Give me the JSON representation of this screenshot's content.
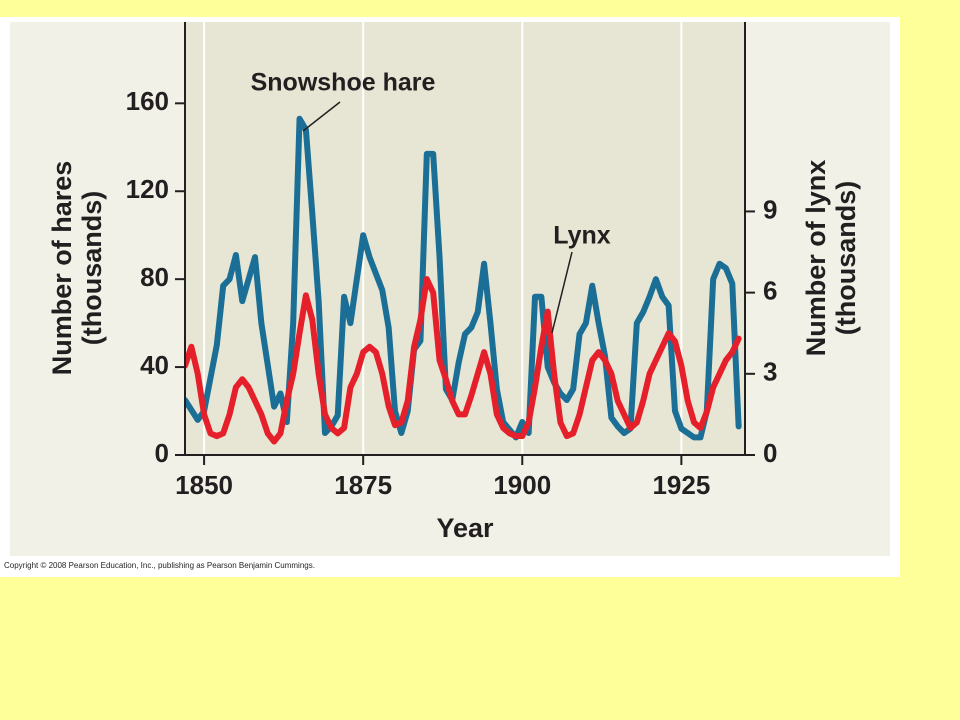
{
  "chart_data": {
    "type": "line",
    "xlabel": "Year",
    "ylabel": [
      "Number of hares",
      "(thousands)"
    ],
    "y2label": [
      "Number of lynx",
      "(thousands)"
    ],
    "annotations": [
      "Snowshoe hare",
      "Lynx"
    ],
    "footer": "Copyright © 2008 Pearson Education, Inc., publishing as Pearson Benjamin Cummings.",
    "xlim": [
      1847,
      1935
    ],
    "xticks": [
      1850,
      1875,
      1900,
      1925
    ],
    "ylim": [
      0,
      197
    ],
    "yticks": [
      0,
      40,
      80,
      120,
      160
    ],
    "y2lim": [
      0,
      16
    ],
    "y2ticks": [
      0,
      3,
      6,
      9
    ],
    "grid": true,
    "series": [
      {
        "name": "Snowshoe hare",
        "color": "#1b6f96",
        "x": [
          1847,
          1849,
          1850,
          1852,
          1853,
          1854,
          1855,
          1856,
          1857,
          1858,
          1859,
          1861,
          1862,
          1863,
          1864,
          1865,
          1866,
          1867,
          1868,
          1869,
          1870,
          1871,
          1872,
          1873,
          1875,
          1876,
          1878,
          1879,
          1880,
          1881,
          1882,
          1883,
          1884,
          1885,
          1886,
          1887,
          1888,
          1889,
          1890,
          1891,
          1892,
          1893,
          1894,
          1895,
          1896,
          1897,
          1899,
          1900,
          1901,
          1902,
          1903,
          1904,
          1905,
          1906,
          1907,
          1908,
          1909,
          1910,
          1911,
          1912,
          1913,
          1914,
          1915,
          1916,
          1917,
          1918,
          1919,
          1920,
          1921,
          1922,
          1923,
          1924,
          1925,
          1926,
          1927,
          1928,
          1929,
          1930,
          1931,
          1932,
          1933,
          1934
        ],
        "values": [
          25,
          16,
          20,
          50,
          77,
          80,
          91,
          70,
          80,
          90,
          60,
          22,
          28,
          15,
          60,
          153,
          148,
          110,
          70,
          10,
          13,
          18,
          72,
          60,
          100,
          90,
          75,
          58,
          20,
          10,
          20,
          48,
          52,
          137,
          137,
          90,
          30,
          25,
          42,
          55,
          58,
          65,
          87,
          60,
          30,
          15,
          8,
          15,
          10,
          72,
          72,
          40,
          33,
          28,
          25,
          30,
          55,
          60,
          77,
          60,
          45,
          17,
          13,
          10,
          12,
          60,
          65,
          72,
          80,
          72,
          68,
          20,
          12,
          10,
          8,
          8,
          20,
          80,
          87,
          85,
          78,
          13
        ]
      },
      {
        "name": "Lynx",
        "color": "#e5202b",
        "axis": "y2",
        "x": [
          1847,
          1848,
          1849,
          1850,
          1851,
          1852,
          1853,
          1854,
          1855,
          1856,
          1857,
          1858,
          1859,
          1860,
          1861,
          1862,
          1863,
          1864,
          1865,
          1866,
          1867,
          1868,
          1869,
          1870,
          1871,
          1872,
          1873,
          1874,
          1875,
          1876,
          1877,
          1878,
          1879,
          1880,
          1881,
          1882,
          1883,
          1884,
          1885,
          1886,
          1887,
          1888,
          1889,
          1890,
          1891,
          1892,
          1893,
          1894,
          1895,
          1896,
          1897,
          1898,
          1899,
          1900,
          1901,
          1902,
          1903,
          1904,
          1905,
          1906,
          1907,
          1908,
          1909,
          1910,
          1911,
          1912,
          1913,
          1914,
          1915,
          1916,
          1917,
          1918,
          1919,
          1920,
          1921,
          1922,
          1923,
          1924,
          1925,
          1926,
          1927,
          1928,
          1929,
          1930,
          1931,
          1932,
          1933,
          1934
        ],
        "values": [
          3.3,
          4,
          3,
          1.5,
          0.8,
          0.7,
          0.8,
          1.5,
          2.5,
          2.8,
          2.5,
          2,
          1.5,
          0.8,
          0.5,
          0.8,
          2,
          3,
          4.5,
          5.9,
          5,
          3,
          1.5,
          1,
          0.8,
          1,
          2.5,
          3,
          3.8,
          4,
          3.8,
          3,
          1.8,
          1.1,
          1.2,
          2,
          4,
          5,
          6.5,
          6,
          3.5,
          2.8,
          2,
          1.5,
          1.5,
          2.2,
          3,
          3.8,
          3,
          1.5,
          1,
          0.8,
          0.7,
          0.7,
          1.2,
          2.5,
          4,
          5.3,
          3,
          1.2,
          0.7,
          0.8,
          1.5,
          2.5,
          3.5,
          3.8,
          3.5,
          3,
          2,
          1.5,
          1,
          1.2,
          2,
          3,
          3.5,
          4,
          4.5,
          4.2,
          3.3,
          2,
          1.2,
          1,
          1.6,
          2.5,
          3,
          3.5,
          3.8,
          4.3
        ]
      }
    ]
  }
}
